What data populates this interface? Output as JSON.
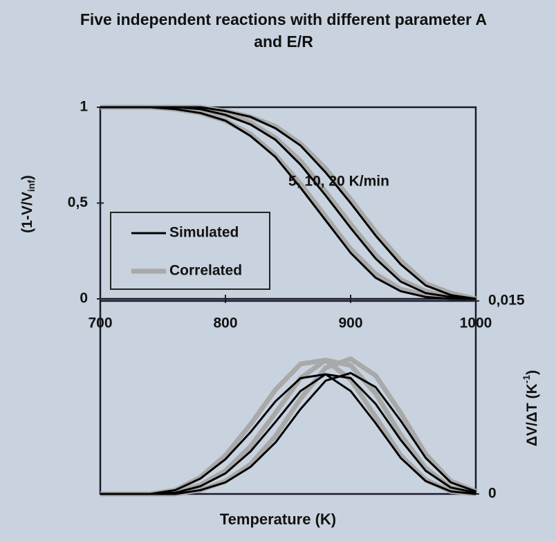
{
  "title": [
    "Five independent reactions with different parameter A",
    "and E/R"
  ],
  "xlabel": "Temperature  (K)",
  "charts": [
    {
      "type": "line",
      "ylabel": "(1-V/V",
      "ylabel_sub": "inf",
      "ylabel_end": ")",
      "annotation": "5, 10, 20 K/min",
      "legend": "left",
      "x": [
        700,
        720,
        740,
        760,
        780,
        800,
        820,
        840,
        860,
        880,
        900,
        920,
        940,
        960,
        980,
        1000
      ],
      "xlim": [
        700,
        1000
      ],
      "xticks": [
        700,
        800,
        900,
        1000
      ],
      "ylim": [
        0,
        1
      ],
      "yticks": [
        0,
        {
          "value": 0.5,
          "label": "0,5"
        },
        1
      ],
      "series": [
        {
          "name": "Correlated",
          "color": "#a9a9a9",
          "curves": [
            [
              1,
              1,
              1,
              0.99,
              0.97,
              0.93,
              0.86,
              0.75,
              0.6,
              0.43,
              0.26,
              0.13,
              0.05,
              0.02,
              0.01,
              0
            ],
            [
              1,
              1,
              1,
              1,
              0.99,
              0.96,
              0.92,
              0.84,
              0.72,
              0.56,
              0.39,
              0.23,
              0.1,
              0.04,
              0.01,
              0
            ],
            [
              1,
              1,
              1,
              1,
              1,
              0.98,
              0.95,
              0.9,
              0.81,
              0.68,
              0.52,
              0.35,
              0.2,
              0.08,
              0.03,
              0
            ]
          ]
        },
        {
          "name": "Simulated",
          "color": "#000000",
          "curves": [
            [
              1,
              1,
              1,
              0.99,
              0.97,
              0.93,
              0.85,
              0.74,
              0.58,
              0.41,
              0.24,
              0.11,
              0.04,
              0.01,
              0,
              0
            ],
            [
              1,
              1,
              1,
              1,
              0.99,
              0.96,
              0.91,
              0.83,
              0.7,
              0.54,
              0.37,
              0.21,
              0.09,
              0.03,
              0.01,
              0
            ],
            [
              1,
              1,
              1,
              1,
              1,
              0.98,
              0.95,
              0.89,
              0.8,
              0.66,
              0.5,
              0.33,
              0.18,
              0.07,
              0.02,
              0
            ]
          ]
        }
      ]
    },
    {
      "type": "line",
      "y2label": "ΔV/ΔT (K",
      "y2label_sup": "-1",
      "y2label_end": ")",
      "x": [
        700,
        720,
        740,
        760,
        780,
        800,
        820,
        840,
        860,
        880,
        900,
        920,
        940,
        960,
        980,
        1000
      ],
      "xlim": [
        700,
        1000
      ],
      "y2lim": [
        0,
        0.015
      ],
      "y2ticks": [
        0,
        {
          "value": 0.015,
          "label": "0,015"
        }
      ],
      "series": [
        {
          "name": "Correlated",
          "color": "#a9a9a9",
          "axis": "y2",
          "curves": [
            [
              0,
              0,
              0,
              0.0003,
              0.0013,
              0.003,
              0.0054,
              0.0081,
              0.0101,
              0.0104,
              0.0089,
              0.006,
              0.003,
              0.0011,
              0.0002,
              0
            ],
            [
              0,
              0,
              0,
              0.0001,
              0.0007,
              0.0018,
              0.0037,
              0.0063,
              0.009,
              0.0104,
              0.01,
              0.0078,
              0.0046,
              0.002,
              0.0005,
              0.0001
            ],
            [
              0,
              0,
              0,
              0,
              0.0003,
              0.001,
              0.0023,
              0.0045,
              0.0074,
              0.0098,
              0.0105,
              0.0092,
              0.0063,
              0.0031,
              0.001,
              0.0002
            ]
          ]
        },
        {
          "name": "Simulated",
          "color": "#000000",
          "axis": "y2",
          "curves": [
            [
              0,
              0,
              0,
              0.0003,
              0.0012,
              0.0027,
              0.0048,
              0.0072,
              0.009,
              0.0093,
              0.008,
              0.0055,
              0.0028,
              0.001,
              0.0002,
              0
            ],
            [
              0,
              0,
              0,
              0.0001,
              0.0006,
              0.0016,
              0.0033,
              0.0056,
              0.008,
              0.0093,
              0.009,
              0.007,
              0.0042,
              0.0018,
              0.0005,
              0.0001
            ],
            [
              0,
              0,
              0,
              0,
              0.0003,
              0.0009,
              0.0021,
              0.004,
              0.0066,
              0.0088,
              0.0094,
              0.0083,
              0.0057,
              0.0028,
              0.0009,
              0.0002
            ]
          ]
        }
      ]
    }
  ]
}
